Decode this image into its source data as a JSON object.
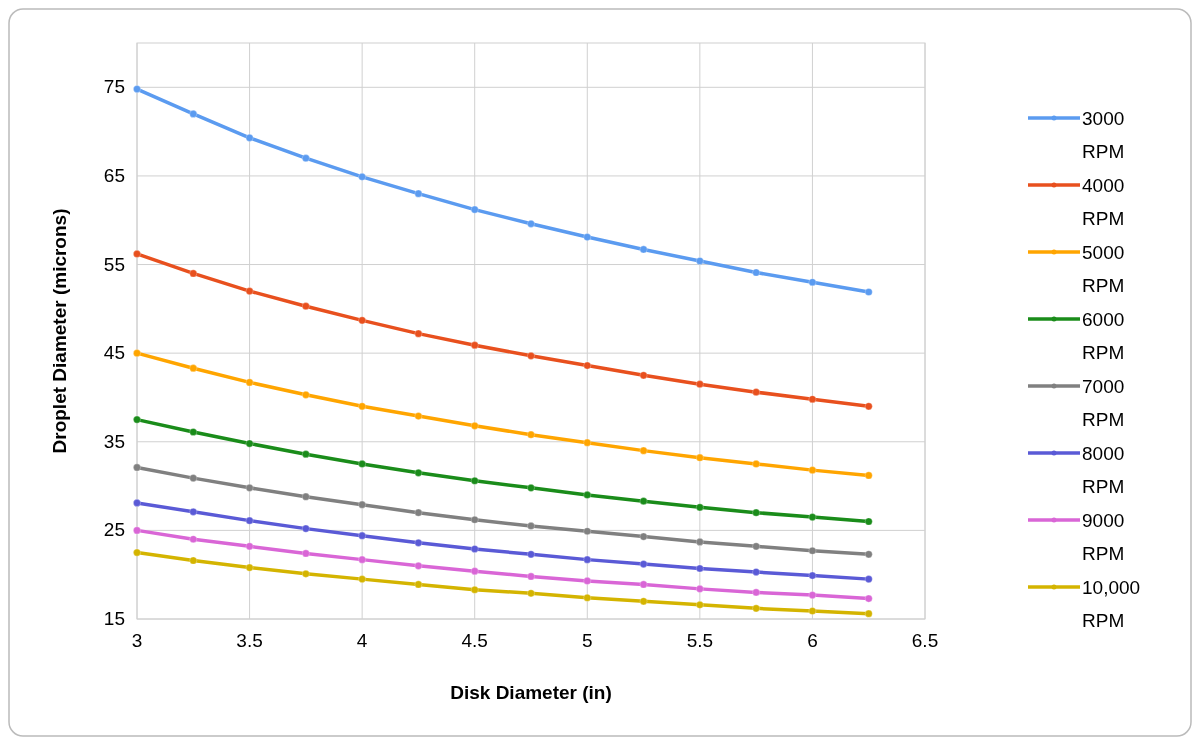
{
  "chart_data": {
    "type": "line",
    "xlabel": "Disk Diameter (in)",
    "ylabel": "Droplet Diameter (microns)",
    "x": [
      3,
      3.25,
      3.5,
      3.75,
      4,
      4.25,
      4.5,
      4.75,
      5,
      5.25,
      5.5,
      5.75,
      6,
      6.25
    ],
    "xlim": [
      3,
      6.5
    ],
    "xticks": [
      3,
      3.5,
      4,
      4.5,
      5,
      5.5,
      6,
      6.5
    ],
    "ylim": [
      15,
      80
    ],
    "yticks": [
      15,
      25,
      35,
      45,
      55,
      65,
      75
    ],
    "grid": true,
    "legend": "right",
    "marker": "circle",
    "line_style": "solid",
    "series": [
      {
        "name": "3000 RPM",
        "color": "#5b9bf0",
        "values": [
          74.8,
          72,
          69.3,
          67,
          64.9,
          63,
          61.2,
          59.6,
          58.1,
          56.7,
          55.4,
          54.1,
          53,
          51.9
        ]
      },
      {
        "name": "4000 RPM",
        "color": "#e8501e",
        "values": [
          56.2,
          54,
          52,
          50.3,
          48.7,
          47.2,
          45.9,
          44.7,
          43.6,
          42.5,
          41.5,
          40.6,
          39.8,
          39
        ]
      },
      {
        "name": "5000 RPM",
        "color": "#ffa500",
        "values": [
          45,
          43.3,
          41.7,
          40.3,
          39,
          37.9,
          36.8,
          35.8,
          34.9,
          34,
          33.2,
          32.5,
          31.8,
          31.2
        ]
      },
      {
        "name": "6000 RPM",
        "color": "#1a8c1a",
        "values": [
          37.5,
          36.1,
          34.8,
          33.6,
          32.5,
          31.5,
          30.6,
          29.8,
          29,
          28.3,
          27.6,
          27,
          26.5,
          26
        ]
      },
      {
        "name": "7000 RPM",
        "color": "#808080",
        "values": [
          32.1,
          30.9,
          29.8,
          28.8,
          27.9,
          27,
          26.2,
          25.5,
          24.9,
          24.3,
          23.7,
          23.2,
          22.7,
          22.3
        ]
      },
      {
        "name": "8000 RPM",
        "color": "#5a5ad6",
        "values": [
          28.1,
          27.1,
          26.1,
          25.2,
          24.4,
          23.6,
          22.9,
          22.3,
          21.7,
          21.2,
          20.7,
          20.3,
          19.9,
          19.5
        ]
      },
      {
        "name": "9000 RPM",
        "color": "#d966d6",
        "values": [
          25,
          24,
          23.2,
          22.4,
          21.7,
          21,
          20.4,
          19.8,
          19.3,
          18.9,
          18.4,
          18,
          17.7,
          17.3
        ]
      },
      {
        "name": "10,000 RPM",
        "color": "#d4b400",
        "values": [
          22.5,
          21.6,
          20.8,
          20.1,
          19.5,
          18.9,
          18.3,
          17.9,
          17.4,
          17,
          16.6,
          16.2,
          15.9,
          15.6
        ]
      }
    ]
  }
}
